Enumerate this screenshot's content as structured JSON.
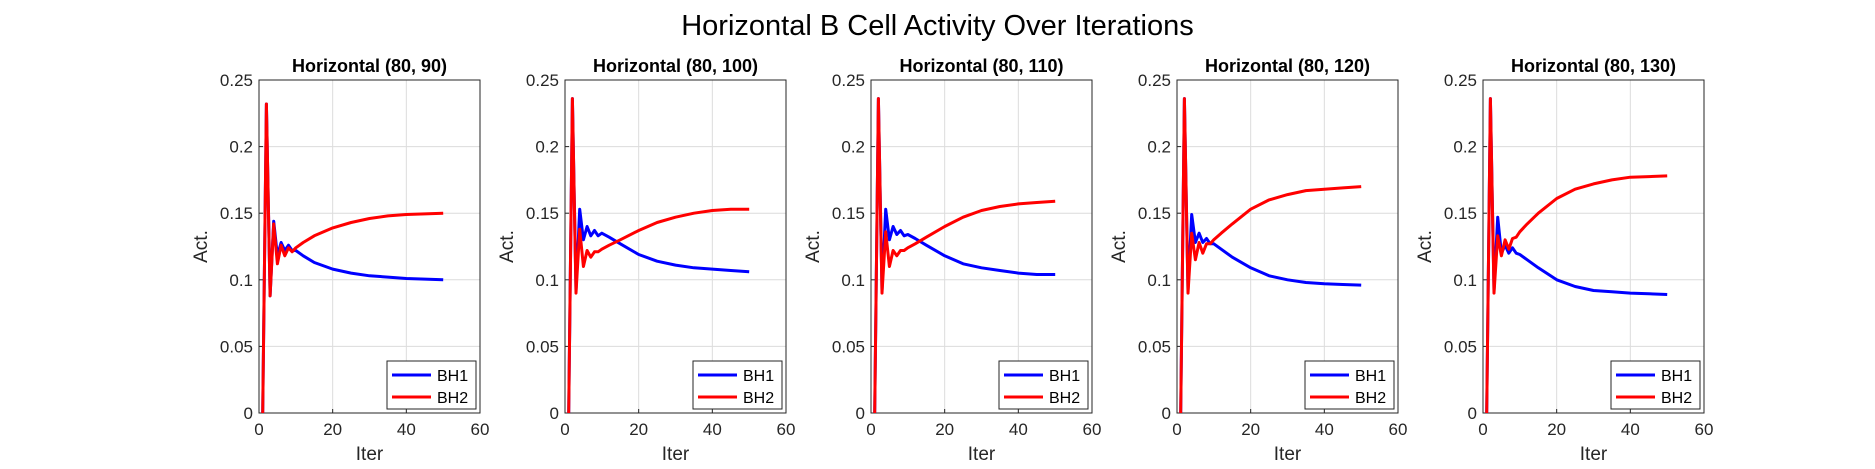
{
  "figure": {
    "title": "Horizontal B Cell Activity Over Iterations"
  },
  "colors": {
    "BH1": "#0000ff",
    "BH2": "#ff0000",
    "grid": "#dcdcdc",
    "axis": "#262626"
  },
  "chart_data": [
    {
      "type": "line",
      "title": "Horizontal (80, 90)",
      "xlabel": "Iter",
      "ylabel": "Act.",
      "xlim": [
        0,
        60
      ],
      "ylim": [
        0,
        0.25
      ],
      "xticks": [
        0,
        20,
        40,
        60
      ],
      "yticks": [
        0,
        0.05,
        0.1,
        0.15,
        0.2,
        0.25
      ],
      "grid": true,
      "legend": "bottom-right",
      "series": [
        {
          "name": "BH1",
          "x": [
            1,
            2,
            3,
            4,
            5,
            6,
            7,
            8,
            9,
            10,
            12,
            15,
            20,
            25,
            30,
            35,
            40,
            45,
            50
          ],
          "y": [
            0,
            0.232,
            0.088,
            0.144,
            0.118,
            0.128,
            0.122,
            0.126,
            0.122,
            0.122,
            0.118,
            0.113,
            0.108,
            0.105,
            0.103,
            0.102,
            0.101,
            0.1005,
            0.1
          ]
        },
        {
          "name": "BH2",
          "x": [
            1,
            2,
            3,
            4,
            5,
            6,
            7,
            8,
            9,
            10,
            12,
            15,
            20,
            25,
            30,
            35,
            40,
            45,
            50
          ],
          "y": [
            0,
            0.232,
            0.088,
            0.142,
            0.112,
            0.126,
            0.118,
            0.124,
            0.121,
            0.124,
            0.128,
            0.133,
            0.139,
            0.143,
            0.146,
            0.148,
            0.149,
            0.1495,
            0.15
          ]
        }
      ]
    },
    {
      "type": "line",
      "title": "Horizontal (80, 100)",
      "xlabel": "Iter",
      "ylabel": "Act.",
      "xlim": [
        0,
        60
      ],
      "ylim": [
        0,
        0.25
      ],
      "xticks": [
        0,
        20,
        40,
        60
      ],
      "yticks": [
        0,
        0.05,
        0.1,
        0.15,
        0.2,
        0.25
      ],
      "grid": true,
      "legend": "bottom-right",
      "series": [
        {
          "name": "BH1",
          "x": [
            1,
            2,
            3,
            4,
            5,
            6,
            7,
            8,
            9,
            10,
            12,
            15,
            20,
            25,
            30,
            35,
            40,
            45,
            50
          ],
          "y": [
            0,
            0.236,
            0.092,
            0.153,
            0.13,
            0.14,
            0.133,
            0.137,
            0.133,
            0.135,
            0.132,
            0.127,
            0.119,
            0.114,
            0.111,
            0.109,
            0.108,
            0.107,
            0.106
          ]
        },
        {
          "name": "BH2",
          "x": [
            1,
            2,
            3,
            4,
            5,
            6,
            7,
            8,
            9,
            10,
            12,
            15,
            20,
            25,
            30,
            35,
            40,
            45,
            50
          ],
          "y": [
            0,
            0.236,
            0.09,
            0.138,
            0.11,
            0.122,
            0.117,
            0.121,
            0.121,
            0.123,
            0.126,
            0.13,
            0.137,
            0.143,
            0.147,
            0.15,
            0.152,
            0.153,
            0.153
          ]
        }
      ]
    },
    {
      "type": "line",
      "title": "Horizontal (80, 110)",
      "xlabel": "Iter",
      "ylabel": "Act.",
      "xlim": [
        0,
        60
      ],
      "ylim": [
        0,
        0.25
      ],
      "xticks": [
        0,
        20,
        40,
        60
      ],
      "yticks": [
        0,
        0.05,
        0.1,
        0.15,
        0.2,
        0.25
      ],
      "grid": true,
      "legend": "bottom-right",
      "series": [
        {
          "name": "BH1",
          "x": [
            1,
            2,
            3,
            4,
            5,
            6,
            7,
            8,
            9,
            10,
            12,
            15,
            20,
            25,
            30,
            35,
            40,
            45,
            50
          ],
          "y": [
            0,
            0.236,
            0.092,
            0.153,
            0.13,
            0.14,
            0.134,
            0.137,
            0.133,
            0.134,
            0.131,
            0.126,
            0.118,
            0.112,
            0.109,
            0.107,
            0.105,
            0.104,
            0.104
          ]
        },
        {
          "name": "BH2",
          "x": [
            1,
            2,
            3,
            4,
            5,
            6,
            7,
            8,
            9,
            10,
            12,
            15,
            20,
            25,
            30,
            35,
            40,
            45,
            50
          ],
          "y": [
            0,
            0.236,
            0.09,
            0.136,
            0.11,
            0.122,
            0.118,
            0.122,
            0.122,
            0.124,
            0.127,
            0.132,
            0.14,
            0.147,
            0.152,
            0.155,
            0.157,
            0.158,
            0.159
          ]
        }
      ]
    },
    {
      "type": "line",
      "title": "Horizontal (80, 120)",
      "xlabel": "Iter",
      "ylabel": "Act.",
      "xlim": [
        0,
        60
      ],
      "ylim": [
        0,
        0.25
      ],
      "xticks": [
        0,
        20,
        40,
        60
      ],
      "yticks": [
        0,
        0.05,
        0.1,
        0.15,
        0.2,
        0.25
      ],
      "grid": true,
      "legend": "bottom-right",
      "series": [
        {
          "name": "BH1",
          "x": [
            1,
            2,
            3,
            4,
            5,
            6,
            7,
            8,
            9,
            10,
            12,
            15,
            20,
            25,
            30,
            35,
            40,
            45,
            50
          ],
          "y": [
            0,
            0.236,
            0.092,
            0.149,
            0.128,
            0.135,
            0.128,
            0.131,
            0.127,
            0.127,
            0.123,
            0.117,
            0.109,
            0.103,
            0.1,
            0.098,
            0.097,
            0.0965,
            0.096
          ]
        },
        {
          "name": "BH2",
          "x": [
            1,
            2,
            3,
            4,
            5,
            6,
            7,
            8,
            9,
            10,
            12,
            15,
            20,
            25,
            30,
            35,
            40,
            45,
            50
          ],
          "y": [
            0,
            0.236,
            0.09,
            0.135,
            0.115,
            0.128,
            0.12,
            0.127,
            0.127,
            0.13,
            0.135,
            0.142,
            0.153,
            0.16,
            0.164,
            0.167,
            0.168,
            0.169,
            0.17
          ]
        }
      ]
    },
    {
      "type": "line",
      "title": "Horizontal (80, 130)",
      "xlabel": "Iter",
      "ylabel": "Act.",
      "xlim": [
        0,
        60
      ],
      "ylim": [
        0,
        0.25
      ],
      "xticks": [
        0,
        20,
        40,
        60
      ],
      "yticks": [
        0,
        0.05,
        0.1,
        0.15,
        0.2,
        0.25
      ],
      "grid": true,
      "legend": "bottom-right",
      "series": [
        {
          "name": "BH1",
          "x": [
            1,
            2,
            3,
            4,
            5,
            6,
            7,
            8,
            9,
            10,
            12,
            15,
            20,
            25,
            30,
            35,
            40,
            45,
            50
          ],
          "y": [
            0,
            0.236,
            0.092,
            0.147,
            0.12,
            0.126,
            0.12,
            0.124,
            0.12,
            0.119,
            0.115,
            0.109,
            0.1,
            0.095,
            0.092,
            0.091,
            0.09,
            0.0895,
            0.089
          ]
        },
        {
          "name": "BH2",
          "x": [
            1,
            2,
            3,
            4,
            5,
            6,
            7,
            8,
            9,
            10,
            12,
            15,
            20,
            25,
            30,
            35,
            40,
            45,
            50
          ],
          "y": [
            0,
            0.236,
            0.09,
            0.133,
            0.118,
            0.13,
            0.123,
            0.131,
            0.132,
            0.136,
            0.142,
            0.15,
            0.161,
            0.168,
            0.172,
            0.175,
            0.177,
            0.1775,
            0.178
          ]
        }
      ]
    }
  ]
}
